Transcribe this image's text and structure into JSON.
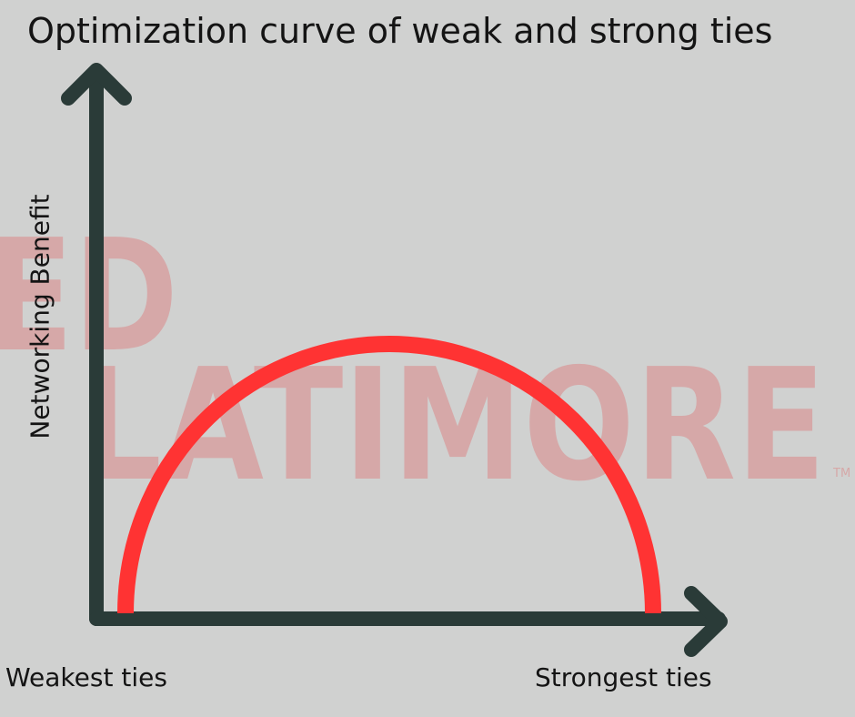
{
  "title": "Optimization curve of weak and strong ties",
  "y_axis_label": "Networking Benefit",
  "x_axis_left_label": "Weakest ties",
  "x_axis_right_label": "Strongest ties",
  "watermark": {
    "line1": "ED",
    "line2": "LATIMORE",
    "mark": "TM"
  },
  "colors": {
    "background": "#d0d1d0",
    "axis": "#2a3b38",
    "curve": "#ff3333",
    "watermark": "#d6a8a8",
    "text": "#141414"
  },
  "chart_data": {
    "type": "line",
    "shape": "semicircle",
    "x": [
      "Weakest ties",
      "Strongest ties"
    ],
    "peak": "middle"
  }
}
